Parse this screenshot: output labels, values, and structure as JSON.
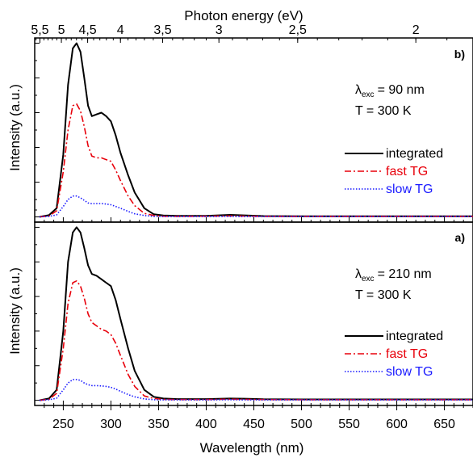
{
  "chart_data": {
    "type": "line",
    "top_axis": {
      "label": "Photon energy (eV)",
      "ticks": [
        {
          "label": "5,5",
          "energy": 5.5
        },
        {
          "label": "5",
          "energy": 5.0
        },
        {
          "label": "4,5",
          "energy": 4.5
        },
        {
          "label": "4",
          "energy": 4.0
        },
        {
          "label": "3,5",
          "energy": 3.5
        },
        {
          "label": "3",
          "energy": 3.0
        },
        {
          "label": "2,5",
          "energy": 2.5
        },
        {
          "label": "2",
          "energy": 2.0
        }
      ]
    },
    "xlabel": "Wavelength (nm)",
    "xlim": [
      220,
      680
    ],
    "xticks": [
      250,
      300,
      350,
      400,
      450,
      500,
      550,
      600,
      650
    ],
    "panels": [
      {
        "id": "b",
        "panel_label": "b)",
        "ylabel": "Intensity (a.u.)",
        "ylim": [
          -0.03,
          1.03
        ],
        "annotation": {
          "lambda_symbol": "λ",
          "lambda_sub": "exc",
          "lambda_value": "= 90 nm",
          "temperature": "T = 300 K"
        },
        "series": [
          {
            "name": "integrated",
            "color": "#000000",
            "dash": "solid",
            "x": [
              225,
              235,
              243,
              250,
              255,
              260,
              264,
              268,
              272,
              276,
              280,
              285,
              290,
              295,
              300,
              305,
              310,
              318,
              325,
              335,
              345,
              355,
              370,
              400,
              425,
              440,
              460,
              500,
              600,
              680
            ],
            "y": [
              0,
              0.01,
              0.05,
              0.36,
              0.76,
              0.97,
              1.0,
              0.95,
              0.8,
              0.64,
              0.58,
              0.59,
              0.6,
              0.58,
              0.55,
              0.47,
              0.37,
              0.24,
              0.14,
              0.05,
              0.015,
              0.008,
              0.006,
              0.006,
              0.012,
              0.009,
              0.005,
              0.004,
              0.004,
              0.004
            ]
          },
          {
            "name": "fast TG",
            "color": "#e8000b",
            "dash": "dashdot",
            "x": [
              225,
              235,
              243,
              250,
              255,
              260,
              264,
              268,
              272,
              276,
              280,
              285,
              290,
              295,
              300,
              305,
              310,
              318,
              325,
              335,
              345,
              355,
              370,
              400,
              425,
              440,
              460,
              500,
              600,
              680
            ],
            "y": [
              0,
              0.005,
              0.035,
              0.26,
              0.5,
              0.64,
              0.65,
              0.61,
              0.52,
              0.41,
              0.35,
              0.34,
              0.34,
              0.33,
              0.32,
              0.27,
              0.21,
              0.12,
              0.065,
              0.02,
              0.008,
              0.004,
              0.003,
              0.004,
              0.006,
              0.005,
              0.003,
              0.003,
              0.003,
              0.003
            ]
          },
          {
            "name": "slow TG",
            "color": "#1a1aff",
            "dash": "dotted",
            "x": [
              225,
              235,
              243,
              250,
              255,
              260,
              264,
              268,
              272,
              276,
              280,
              285,
              290,
              295,
              300,
              305,
              310,
              318,
              325,
              335,
              345,
              355,
              370,
              400,
              425,
              440,
              460,
              500,
              600,
              680
            ],
            "y": [
              0,
              0.003,
              0.012,
              0.06,
              0.1,
              0.12,
              0.12,
              0.11,
              0.095,
              0.08,
              0.076,
              0.077,
              0.077,
              0.074,
              0.07,
              0.06,
              0.05,
              0.032,
              0.018,
              0.008,
              0.003,
              0.002,
              0.002,
              0.002,
              0.003,
              0.002,
              0.002,
              0.002,
              0.002,
              0.002
            ]
          }
        ]
      },
      {
        "id": "a",
        "panel_label": "a)",
        "ylabel": "Intensity (a.u.)",
        "ylim": [
          -0.03,
          1.03
        ],
        "annotation": {
          "lambda_symbol": "λ",
          "lambda_sub": "exc",
          "lambda_value": "= 210 nm",
          "temperature": "T = 300 K"
        },
        "series": [
          {
            "name": "integrated",
            "color": "#000000",
            "dash": "solid",
            "x": [
              225,
              235,
              243,
              250,
              255,
              260,
              264,
              268,
              272,
              276,
              280,
              285,
              290,
              295,
              300,
              305,
              310,
              318,
              325,
              335,
              345,
              355,
              370,
              400,
              425,
              440,
              460,
              500,
              600,
              680
            ],
            "y": [
              0,
              0.01,
              0.06,
              0.4,
              0.8,
              0.97,
              1.0,
              0.97,
              0.88,
              0.78,
              0.73,
              0.72,
              0.7,
              0.68,
              0.66,
              0.58,
              0.47,
              0.3,
              0.17,
              0.06,
              0.02,
              0.01,
              0.007,
              0.007,
              0.01,
              0.009,
              0.006,
              0.005,
              0.005,
              0.005
            ]
          },
          {
            "name": "fast TG",
            "color": "#e8000b",
            "dash": "dashdot",
            "x": [
              225,
              235,
              243,
              250,
              255,
              260,
              264,
              268,
              272,
              276,
              280,
              285,
              290,
              295,
              300,
              305,
              310,
              318,
              325,
              335,
              345,
              355,
              370,
              400,
              425,
              440,
              460,
              500,
              600,
              680
            ],
            "y": [
              0,
              0.005,
              0.04,
              0.3,
              0.56,
              0.68,
              0.69,
              0.66,
              0.59,
              0.5,
              0.45,
              0.43,
              0.41,
              0.4,
              0.38,
              0.33,
              0.26,
              0.15,
              0.08,
              0.025,
              0.01,
              0.005,
              0.004,
              0.004,
              0.006,
              0.005,
              0.004,
              0.003,
              0.003,
              0.003
            ]
          },
          {
            "name": "slow TG",
            "color": "#1a1aff",
            "dash": "dotted",
            "x": [
              225,
              235,
              243,
              250,
              255,
              260,
              264,
              268,
              272,
              276,
              280,
              285,
              290,
              295,
              300,
              305,
              310,
              318,
              325,
              335,
              345,
              355,
              370,
              400,
              425,
              440,
              460,
              500,
              600,
              680
            ],
            "y": [
              0,
              0.003,
              0.012,
              0.06,
              0.1,
              0.12,
              0.12,
              0.115,
              0.1,
              0.09,
              0.085,
              0.085,
              0.083,
              0.08,
              0.075,
              0.065,
              0.052,
              0.033,
              0.02,
              0.008,
              0.003,
              0.002,
              0.002,
              0.002,
              0.003,
              0.002,
              0.002,
              0.002,
              0.002,
              0.002
            ]
          }
        ]
      }
    ]
  }
}
